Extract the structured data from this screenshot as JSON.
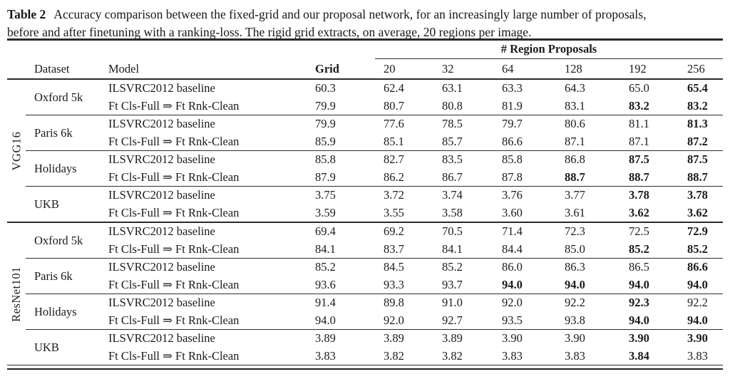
{
  "colors": {
    "background": "#ffffff",
    "text": "#1b1b1b",
    "rule": "#2a2a2a"
  },
  "caption": {
    "label": "Table 2",
    "line1": "Accuracy comparison between the fixed-grid and our proposal network, for an increasingly large number of proposals,",
    "line2": "before and after finetuning with a ranking-loss. The rigid grid extracts, on average, 20 regions per image."
  },
  "table": {
    "span_header": "# Region Proposals",
    "columns": [
      "Dataset",
      "Model",
      "Grid",
      "20",
      "32",
      "64",
      "128",
      "192",
      "256"
    ],
    "sections": [
      {
        "network": "VGG16",
        "groups": [
          {
            "dataset": "Oxford 5k",
            "rows": [
              {
                "model": "ILSVRC2012 baseline",
                "values": [
                  "60.3",
                  "62.4",
                  "63.1",
                  "63.3",
                  "64.3",
                  "65.0",
                  "65.4"
                ],
                "bold": [
                  false,
                  false,
                  false,
                  false,
                  false,
                  false,
                  true
                ]
              },
              {
                "model": "Ft Cls-Full ⇒ Ft Rnk-Clean",
                "values": [
                  "79.9",
                  "80.7",
                  "80.8",
                  "81.9",
                  "83.1",
                  "83.2",
                  "83.2"
                ],
                "bold": [
                  false,
                  false,
                  false,
                  false,
                  false,
                  true,
                  true
                ]
              }
            ]
          },
          {
            "dataset": "Paris 6k",
            "rows": [
              {
                "model": "ILSVRC2012 baseline",
                "values": [
                  "79.9",
                  "77.6",
                  "78.5",
                  "79.7",
                  "80.6",
                  "81.1",
                  "81.3"
                ],
                "bold": [
                  false,
                  false,
                  false,
                  false,
                  false,
                  false,
                  true
                ]
              },
              {
                "model": "Ft Cls-Full ⇒ Ft Rnk-Clean",
                "values": [
                  "85.9",
                  "85.1",
                  "85.7",
                  "86.6",
                  "87.1",
                  "87.1",
                  "87.2"
                ],
                "bold": [
                  false,
                  false,
                  false,
                  false,
                  false,
                  false,
                  true
                ]
              }
            ]
          },
          {
            "dataset": "Holidays",
            "rows": [
              {
                "model": "ILSVRC2012 baseline",
                "values": [
                  "85.8",
                  "82.7",
                  "83.5",
                  "85.8",
                  "86.8",
                  "87.5",
                  "87.5"
                ],
                "bold": [
                  false,
                  false,
                  false,
                  false,
                  false,
                  true,
                  true
                ]
              },
              {
                "model": "Ft Cls-Full ⇒ Ft Rnk-Clean",
                "values": [
                  "87.9",
                  "86.2",
                  "86.7",
                  "87.8",
                  "88.7",
                  "88.7",
                  "88.7"
                ],
                "bold": [
                  false,
                  false,
                  false,
                  false,
                  true,
                  true,
                  true
                ]
              }
            ]
          },
          {
            "dataset": "UKB",
            "rows": [
              {
                "model": "ILSVRC2012 baseline",
                "values": [
                  "3.75",
                  "3.72",
                  "3.74",
                  "3.76",
                  "3.77",
                  "3.78",
                  "3.78"
                ],
                "bold": [
                  false,
                  false,
                  false,
                  false,
                  false,
                  true,
                  true
                ]
              },
              {
                "model": "Ft Cls-Full ⇒ Ft Rnk-Clean",
                "values": [
                  "3.59",
                  "3.55",
                  "3.58",
                  "3.60",
                  "3.61",
                  "3.62",
                  "3.62"
                ],
                "bold": [
                  false,
                  false,
                  false,
                  false,
                  false,
                  true,
                  true
                ]
              }
            ]
          }
        ]
      },
      {
        "network": "ResNet101",
        "groups": [
          {
            "dataset": "Oxford 5k",
            "rows": [
              {
                "model": "ILSVRC2012 baseline",
                "values": [
                  "69.4",
                  "69.2",
                  "70.5",
                  "71.4",
                  "72.3",
                  "72.5",
                  "72.9"
                ],
                "bold": [
                  false,
                  false,
                  false,
                  false,
                  false,
                  false,
                  true
                ]
              },
              {
                "model": "Ft Cls-Full ⇒ Ft Rnk-Clean",
                "values": [
                  "84.1",
                  "83.7",
                  "84.1",
                  "84.4",
                  "85.0",
                  "85.2",
                  "85.2"
                ],
                "bold": [
                  false,
                  false,
                  false,
                  false,
                  false,
                  true,
                  true
                ]
              }
            ]
          },
          {
            "dataset": "Paris 6k",
            "rows": [
              {
                "model": "ILSVRC2012 baseline",
                "values": [
                  "85.2",
                  "84.5",
                  "85.2",
                  "86.0",
                  "86.3",
                  "86.5",
                  "86.6"
                ],
                "bold": [
                  false,
                  false,
                  false,
                  false,
                  false,
                  false,
                  true
                ]
              },
              {
                "model": "Ft Cls-Full ⇒ Ft Rnk-Clean",
                "values": [
                  "93.6",
                  "93.3",
                  "93.7",
                  "94.0",
                  "94.0",
                  "94.0",
                  "94.0"
                ],
                "bold": [
                  false,
                  false,
                  false,
                  true,
                  true,
                  true,
                  true
                ]
              }
            ]
          },
          {
            "dataset": "Holidays",
            "rows": [
              {
                "model": "ILSVRC2012 baseline",
                "values": [
                  "91.4",
                  "89.8",
                  "91.0",
                  "92.0",
                  "92.2",
                  "92.3",
                  "92.2"
                ],
                "bold": [
                  false,
                  false,
                  false,
                  false,
                  false,
                  true,
                  false
                ]
              },
              {
                "model": "Ft Cls-Full ⇒ Ft Rnk-Clean",
                "values": [
                  "94.0",
                  "92.0",
                  "92.7",
                  "93.5",
                  "93.8",
                  "94.0",
                  "94.0"
                ],
                "bold": [
                  false,
                  false,
                  false,
                  false,
                  false,
                  true,
                  true
                ]
              }
            ]
          },
          {
            "dataset": "UKB",
            "rows": [
              {
                "model": "ILSVRC2012 baseline",
                "values": [
                  "3.89",
                  "3.89",
                  "3.89",
                  "3.90",
                  "3.90",
                  "3.90",
                  "3.90"
                ],
                "bold": [
                  false,
                  false,
                  false,
                  false,
                  false,
                  true,
                  true
                ]
              },
              {
                "model": "Ft Cls-Full ⇒ Ft Rnk-Clean",
                "values": [
                  "3.83",
                  "3.82",
                  "3.82",
                  "3.83",
                  "3.83",
                  "3.84",
                  "3.83"
                ],
                "bold": [
                  false,
                  false,
                  false,
                  false,
                  false,
                  true,
                  false
                ]
              }
            ]
          }
        ]
      }
    ]
  }
}
